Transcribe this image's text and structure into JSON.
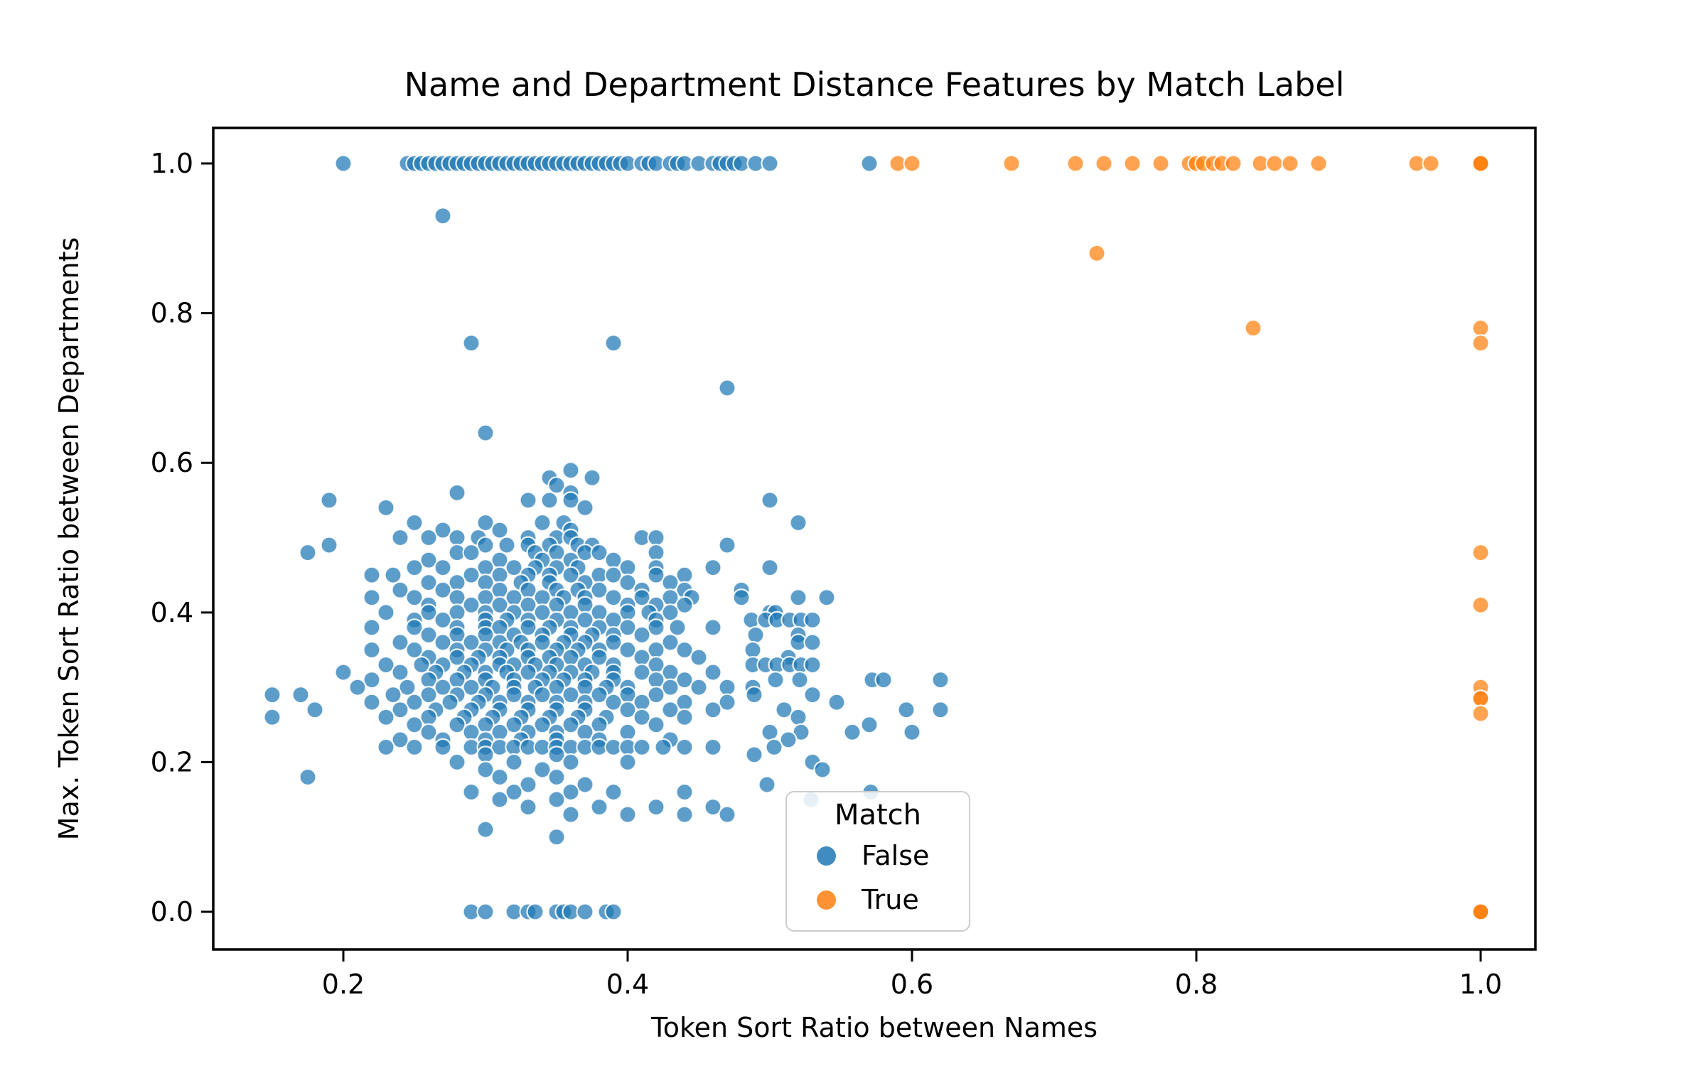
{
  "chart_data": {
    "type": "scatter",
    "title": "Name and Department Distance Features by Match Label",
    "xlabel": "Token Sort Ratio between Names",
    "ylabel": "Max. Token Sort Ratio between Departments",
    "xlim": [
      0.1085,
      1.0385
    ],
    "ylim": [
      -0.0503,
      1.0475
    ],
    "grid": false,
    "xticks": {
      "values": [
        0.2,
        0.4,
        0.6,
        0.8,
        1.0
      ],
      "labels": [
        "0.2",
        "0.4",
        "0.6",
        "0.8",
        "1.0"
      ]
    },
    "yticks": {
      "values": [
        0.0,
        0.2,
        0.4,
        0.6,
        0.8,
        1.0
      ],
      "labels": [
        "0.0",
        "0.2",
        "0.4",
        "0.6",
        "0.8",
        "1.0"
      ]
    },
    "legend": {
      "title": "Match",
      "position": "lower center-right",
      "entries": [
        {
          "label": "False",
          "color": "#1f77b4"
        },
        {
          "label": "True",
          "color": "#ff7f0e"
        }
      ]
    },
    "marker": {
      "radius_px": 11.5,
      "fill_opacity": 0.72,
      "edge_color": "#ffffff"
    },
    "series": [
      {
        "name": "False",
        "color": "#1f77b4",
        "bands": [
          {
            "y": 1.0,
            "x": [
              0.2,
              0.245,
              0.25,
              0.255,
              0.26,
              0.265,
              0.27,
              0.275,
              0.28,
              0.285,
              0.29,
              0.295,
              0.3,
              0.305,
              0.31,
              0.315,
              0.32,
              0.325,
              0.33,
              0.335,
              0.34,
              0.345,
              0.35,
              0.355,
              0.36,
              0.365,
              0.37,
              0.375,
              0.38,
              0.385,
              0.39,
              0.395,
              0.4,
              0.41,
              0.415,
              0.42,
              0.43,
              0.435,
              0.44,
              0.45,
              0.46,
              0.465,
              0.47,
              0.475,
              0.48,
              0.49,
              0.5,
              0.57
            ]
          },
          {
            "y": 0.93,
            "x": [
              0.27
            ]
          },
          {
            "y": 0.76,
            "x": [
              0.29,
              0.39
            ]
          },
          {
            "y": 0.7,
            "x": [
              0.47
            ]
          },
          {
            "y": 0.64,
            "x": [
              0.3
            ]
          },
          {
            "y": 0.59,
            "x": [
              0.36
            ]
          },
          {
            "y": 0.58,
            "x": [
              0.345,
              0.375
            ]
          },
          {
            "y": 0.57,
            "x": [
              0.35
            ]
          },
          {
            "y": 0.56,
            "x": [
              0.28,
              0.36
            ]
          },
          {
            "y": 0.55,
            "x": [
              0.19,
              0.33,
              0.345,
              0.36,
              0.5
            ]
          },
          {
            "y": 0.54,
            "x": [
              0.23,
              0.37
            ]
          },
          {
            "y": 0.52,
            "x": [
              0.25,
              0.3,
              0.34,
              0.355,
              0.52
            ]
          },
          {
            "y": 0.51,
            "x": [
              0.27,
              0.31,
              0.36
            ]
          },
          {
            "y": 0.5,
            "x": [
              0.24,
              0.26,
              0.28,
              0.295,
              0.33,
              0.35,
              0.36,
              0.41,
              0.42
            ]
          },
          {
            "y": 0.49,
            "x": [
              0.19,
              0.3,
              0.315,
              0.33,
              0.345,
              0.365,
              0.375,
              0.47
            ]
          },
          {
            "y": 0.48,
            "x": [
              0.175,
              0.28,
              0.29,
              0.335,
              0.35,
              0.37,
              0.38,
              0.42
            ]
          },
          {
            "y": 0.47,
            "x": [
              0.26,
              0.31,
              0.34,
              0.36,
              0.39
            ]
          },
          {
            "y": 0.46,
            "x": [
              0.25,
              0.27,
              0.3,
              0.32,
              0.335,
              0.35,
              0.365,
              0.4,
              0.42,
              0.46,
              0.5
            ]
          },
          {
            "y": 0.45,
            "x": [
              0.22,
              0.235,
              0.29,
              0.31,
              0.33,
              0.345,
              0.36,
              0.38,
              0.39,
              0.42,
              0.44
            ]
          },
          {
            "y": 0.44,
            "x": [
              0.26,
              0.28,
              0.3,
              0.325,
              0.345,
              0.37,
              0.4,
              0.43
            ]
          },
          {
            "y": 0.43,
            "x": [
              0.24,
              0.27,
              0.31,
              0.33,
              0.35,
              0.365,
              0.38,
              0.41,
              0.44,
              0.48
            ]
          },
          {
            "y": 0.42,
            "x": [
              0.22,
              0.25,
              0.28,
              0.3,
              0.32,
              0.34,
              0.355,
              0.37,
              0.39,
              0.41,
              0.43,
              0.445,
              0.48,
              0.52,
              0.54
            ]
          },
          {
            "y": 0.41,
            "x": [
              0.26,
              0.29,
              0.31,
              0.33,
              0.35,
              0.37,
              0.4,
              0.42,
              0.44
            ]
          },
          {
            "y": 0.4,
            "x": [
              0.23,
              0.26,
              0.28,
              0.3,
              0.32,
              0.34,
              0.36,
              0.38,
              0.4,
              0.415,
              0.43,
              0.5,
              0.504
            ]
          },
          {
            "y": 0.39,
            "x": [
              0.25,
              0.27,
              0.3,
              0.315,
              0.33,
              0.35,
              0.37,
              0.39,
              0.42,
              0.487,
              0.497,
              0.505,
              0.514,
              0.522,
              0.53
            ]
          },
          {
            "y": 0.38,
            "x": [
              0.22,
              0.25,
              0.28,
              0.3,
              0.31,
              0.33,
              0.345,
              0.36,
              0.38,
              0.4,
              0.42,
              0.435,
              0.46
            ]
          },
          {
            "y": 0.37,
            "x": [
              0.26,
              0.28,
              0.3,
              0.32,
              0.34,
              0.36,
              0.375,
              0.39,
              0.41,
              0.49,
              0.52
            ]
          },
          {
            "y": 0.36,
            "x": [
              0.24,
              0.27,
              0.29,
              0.31,
              0.325,
              0.34,
              0.355,
              0.37,
              0.39,
              0.43,
              0.52,
              0.53
            ]
          },
          {
            "y": 0.35,
            "x": [
              0.22,
              0.25,
              0.28,
              0.3,
              0.315,
              0.33,
              0.35,
              0.365,
              0.38,
              0.4,
              0.42,
              0.44,
              0.488
            ]
          },
          {
            "y": 0.34,
            "x": [
              0.26,
              0.28,
              0.295,
              0.31,
              0.33,
              0.345,
              0.36,
              0.38,
              0.41,
              0.45,
              0.513
            ]
          },
          {
            "y": 0.33,
            "x": [
              0.23,
              0.255,
              0.27,
              0.29,
              0.31,
              0.32,
              0.335,
              0.35,
              0.37,
              0.39,
              0.42,
              0.488,
              0.497,
              0.505,
              0.514,
              0.522,
              0.53
            ]
          },
          {
            "y": 0.32,
            "x": [
              0.2,
              0.24,
              0.265,
              0.285,
              0.3,
              0.315,
              0.33,
              0.345,
              0.36,
              0.375,
              0.39,
              0.41,
              0.43,
              0.46
            ]
          },
          {
            "y": 0.31,
            "x": [
              0.22,
              0.26,
              0.28,
              0.3,
              0.32,
              0.34,
              0.355,
              0.37,
              0.39,
              0.42,
              0.44,
              0.504,
              0.521,
              0.572,
              0.58,
              0.62
            ]
          },
          {
            "y": 0.3,
            "x": [
              0.21,
              0.245,
              0.27,
              0.29,
              0.305,
              0.32,
              0.335,
              0.35,
              0.37,
              0.385,
              0.4,
              0.43,
              0.45,
              0.47,
              0.488
            ]
          },
          {
            "y": 0.29,
            "x": [
              0.15,
              0.17,
              0.235,
              0.26,
              0.28,
              0.3,
              0.32,
              0.34,
              0.36,
              0.38,
              0.4,
              0.42,
              0.489,
              0.53
            ]
          },
          {
            "y": 0.28,
            "x": [
              0.22,
              0.25,
              0.275,
              0.295,
              0.31,
              0.33,
              0.35,
              0.37,
              0.39,
              0.41,
              0.44,
              0.47,
              0.547
            ]
          },
          {
            "y": 0.27,
            "x": [
              0.18,
              0.24,
              0.265,
              0.29,
              0.31,
              0.33,
              0.35,
              0.37,
              0.4,
              0.43,
              0.46,
              0.51,
              0.596,
              0.62
            ]
          },
          {
            "y": 0.26,
            "x": [
              0.15,
              0.23,
              0.26,
              0.285,
              0.305,
              0.325,
              0.345,
              0.365,
              0.385,
              0.41,
              0.44,
              0.52
            ]
          },
          {
            "y": 0.25,
            "x": [
              0.25,
              0.28,
              0.3,
              0.32,
              0.34,
              0.36,
              0.38,
              0.42,
              0.57
            ]
          },
          {
            "y": 0.24,
            "x": [
              0.26,
              0.29,
              0.31,
              0.33,
              0.35,
              0.37,
              0.4,
              0.5,
              0.522,
              0.558,
              0.6
            ]
          },
          {
            "y": 0.23,
            "x": [
              0.24,
              0.27,
              0.3,
              0.325,
              0.35,
              0.38,
              0.43,
              0.513
            ]
          },
          {
            "y": 0.22,
            "x": [
              0.23,
              0.25,
              0.27,
              0.29,
              0.3,
              0.31,
              0.32,
              0.33,
              0.34,
              0.35,
              0.36,
              0.37,
              0.38,
              0.39,
              0.4,
              0.41,
              0.425,
              0.44,
              0.46,
              0.503
            ]
          },
          {
            "y": 0.21,
            "x": [
              0.3,
              0.35,
              0.489
            ]
          },
          {
            "y": 0.2,
            "x": [
              0.28,
              0.32,
              0.36,
              0.4,
              0.53
            ]
          },
          {
            "y": 0.19,
            "x": [
              0.3,
              0.34,
              0.537
            ]
          },
          {
            "y": 0.18,
            "x": [
              0.175,
              0.31,
              0.35
            ]
          },
          {
            "y": 0.17,
            "x": [
              0.33,
              0.37,
              0.498
            ]
          },
          {
            "y": 0.16,
            "x": [
              0.29,
              0.32,
              0.36,
              0.39,
              0.44,
              0.571
            ]
          },
          {
            "y": 0.15,
            "x": [
              0.31,
              0.35,
              0.529
            ]
          },
          {
            "y": 0.14,
            "x": [
              0.33,
              0.38,
              0.42,
              0.46
            ]
          },
          {
            "y": 0.13,
            "x": [
              0.36,
              0.4,
              0.44,
              0.47
            ]
          },
          {
            "y": 0.11,
            "x": [
              0.3
            ]
          },
          {
            "y": 0.1,
            "x": [
              0.35
            ]
          },
          {
            "y": 0.0,
            "x": [
              0.29,
              0.3,
              0.32,
              0.33,
              0.335,
              0.35,
              0.355,
              0.36,
              0.37,
              0.385,
              0.39
            ]
          }
        ]
      },
      {
        "name": "True",
        "color": "#ff7f0e",
        "bands": [
          {
            "y": 1.0,
            "x": [
              0.59,
              0.6,
              0.67,
              0.715,
              0.735,
              0.755,
              0.775,
              0.795,
              0.8,
              0.805,
              0.812,
              0.818,
              0.826,
              0.845,
              0.855,
              0.866,
              0.886,
              0.955,
              0.965,
              1.0,
              1.0,
              1.0
            ]
          },
          {
            "y": 0.88,
            "x": [
              0.73
            ]
          },
          {
            "y": 0.78,
            "x": [
              0.84,
              1.0
            ]
          },
          {
            "y": 0.76,
            "x": [
              1.0
            ]
          },
          {
            "y": 0.48,
            "x": [
              1.0
            ]
          },
          {
            "y": 0.41,
            "x": [
              1.0
            ]
          },
          {
            "y": 0.3,
            "x": [
              1.0
            ]
          },
          {
            "y": 0.285,
            "x": [
              1.0,
              1.0
            ]
          },
          {
            "y": 0.265,
            "x": [
              1.0
            ]
          },
          {
            "y": 0.0,
            "x": [
              1.0,
              1.0,
              1.0
            ]
          }
        ]
      }
    ]
  }
}
